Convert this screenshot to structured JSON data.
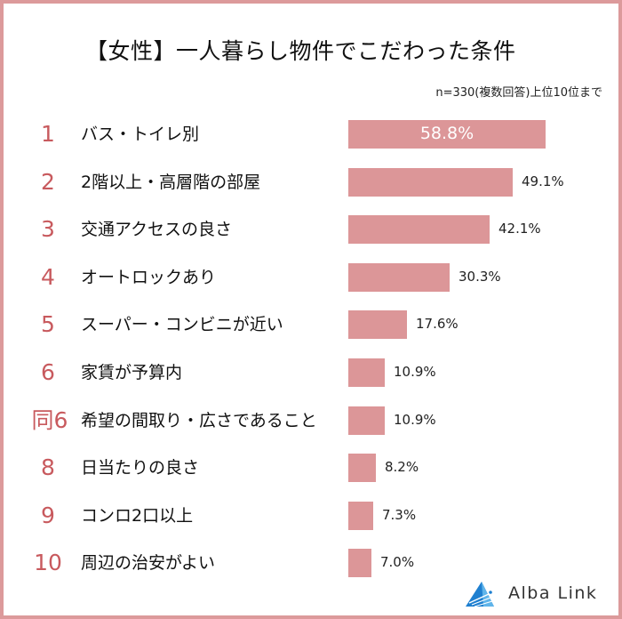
{
  "header": {
    "title": "【女性】一人暮らし物件でこだわった条件",
    "subtitle": "n=330(複数回答)上位10位まで"
  },
  "colors": {
    "bar": "#dc9698",
    "rank": "#c85a5e",
    "border": "#dc9a9b",
    "logo_blue": "#1e7fd0"
  },
  "rows": [
    {
      "rank": "1",
      "label": "バス・トイレ別",
      "value": "58.8%"
    },
    {
      "rank": "2",
      "label": "2階以上・高層階の部屋",
      "value": "49.1%"
    },
    {
      "rank": "3",
      "label": "交通アクセスの良さ",
      "value": "42.1%"
    },
    {
      "rank": "4",
      "label": "オートロックあり",
      "value": "30.3%"
    },
    {
      "rank": "5",
      "label": "スーパー・コンビニが近い",
      "value": "17.6%"
    },
    {
      "rank": "6",
      "label": "家賃が予算内",
      "value": "10.9%"
    },
    {
      "rank": "同6",
      "label": "希望の間取り・広さであること",
      "value": "10.9%"
    },
    {
      "rank": "8",
      "label": "日当たりの良さ",
      "value": "8.2%"
    },
    {
      "rank": "9",
      "label": "コンロ2口以上",
      "value": "7.3%"
    },
    {
      "rank": "10",
      "label": "周辺の治安がよい",
      "value": "7.0%"
    }
  ],
  "logo": {
    "text": "Alba Link",
    "icon": "alba-link-triangle-logo"
  },
  "chart_data": {
    "type": "bar",
    "orientation": "horizontal",
    "title": "【女性】一人暮らし物件でこだわった条件",
    "subtitle": "n=330(複数回答)上位10位まで",
    "categories": [
      "バス・トイレ別",
      "2階以上・高層階の部屋",
      "交通アクセスの良さ",
      "オートロックあり",
      "スーパー・コンビニが近い",
      "家賃が予算内",
      "希望の間取り・広さであること",
      "日当たりの良さ",
      "コンロ2口以上",
      "周辺の治安がよい"
    ],
    "ranks": [
      "1",
      "2",
      "3",
      "4",
      "5",
      "6",
      "同6",
      "8",
      "9",
      "10"
    ],
    "values": [
      58.8,
      49.1,
      42.1,
      30.3,
      17.6,
      10.9,
      10.9,
      8.2,
      7.3,
      7.0
    ],
    "unit": "%",
    "xlabel": "",
    "ylabel": "",
    "grid": false,
    "legend": "none",
    "data_labels": true
  }
}
